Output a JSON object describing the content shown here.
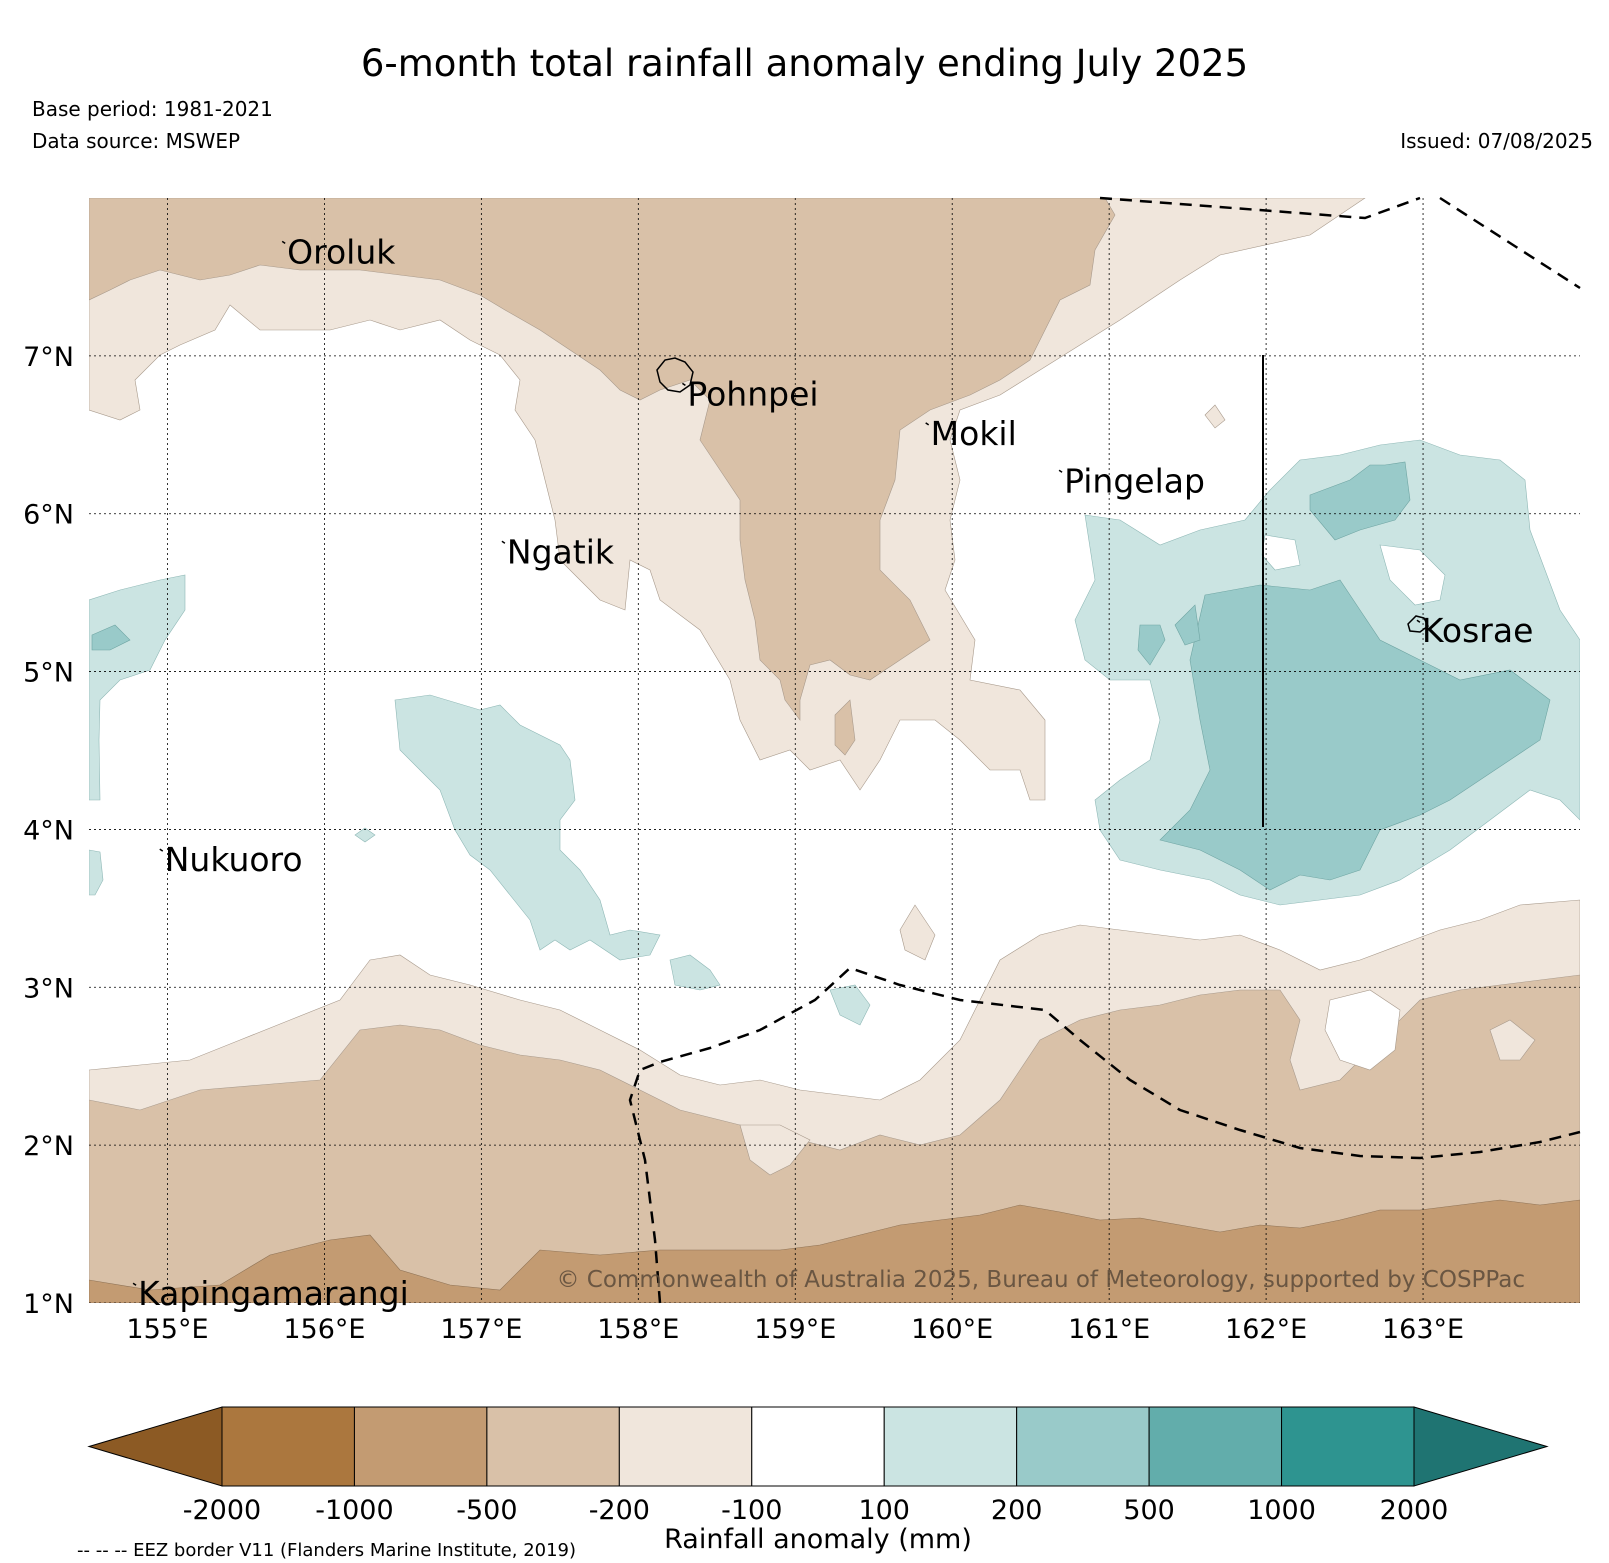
{
  "header": {
    "title": "6-month total rainfall anomaly ending July 2025",
    "base_period": "Base period: 1981-2021",
    "data_source": "Data source: MSWEP",
    "issued": "Issued: 07/08/2025"
  },
  "map": {
    "lon_range": [
      154.5,
      164.0
    ],
    "lat_range": [
      1.0,
      8.0
    ],
    "lon_ticks": [
      {
        "value": 155,
        "label": "155°E"
      },
      {
        "value": 156,
        "label": "156°E"
      },
      {
        "value": 157,
        "label": "157°E"
      },
      {
        "value": 158,
        "label": "158°E"
      },
      {
        "value": 159,
        "label": "159°E"
      },
      {
        "value": 160,
        "label": "160°E"
      },
      {
        "value": 161,
        "label": "161°E"
      },
      {
        "value": 162,
        "label": "162°E"
      },
      {
        "value": 163,
        "label": "163°E"
      }
    ],
    "lat_ticks": [
      {
        "value": 1,
        "label": "1°N"
      },
      {
        "value": 2,
        "label": "2°N"
      },
      {
        "value": 3,
        "label": "3°N"
      },
      {
        "value": 4,
        "label": "4°N"
      },
      {
        "value": 5,
        "label": "5°N"
      },
      {
        "value": 6,
        "label": "6°N"
      },
      {
        "value": 7,
        "label": "7°N"
      }
    ],
    "grid": true,
    "places": [
      {
        "name": "Oroluk",
        "lon": 155.75,
        "lat": 7.7
      },
      {
        "name": "Pohnpei",
        "lon": 158.3,
        "lat": 6.8
      },
      {
        "name": "Mokil",
        "lon": 159.85,
        "lat": 6.55
      },
      {
        "name": "Pingelap",
        "lon": 160.7,
        "lat": 6.25
      },
      {
        "name": "Ngatik",
        "lon": 157.15,
        "lat": 5.8
      },
      {
        "name": "Kosrae",
        "lon": 162.98,
        "lat": 5.3
      },
      {
        "name": "Nukuoro",
        "lon": 154.97,
        "lat": 3.85
      },
      {
        "name": "Kapingamarangi",
        "lon": 154.8,
        "lat": 1.1
      }
    ],
    "copyright": "© Commonwealth of Australia 2025, Bureau of Meteorology, supported by COSPPac"
  },
  "colorbar": {
    "label": "Rainfall anomaly (mm)",
    "ticks": [
      "-2000",
      "-1000",
      "-500",
      "-200",
      "-100",
      "100",
      "200",
      "500",
      "1000",
      "2000"
    ],
    "colors": [
      "#8c5a24",
      "#ab773e",
      "#c39b72",
      "#d9c1a8",
      "#f0e6dc",
      "#ffffff",
      "#cbe4e2",
      "#99cac9",
      "#62adab",
      "#2e9490",
      "#1f7472"
    ]
  },
  "footer": {
    "eez_note": "-- -- -- EEZ border V11 (Flanders Marine Institute, 2019)"
  }
}
